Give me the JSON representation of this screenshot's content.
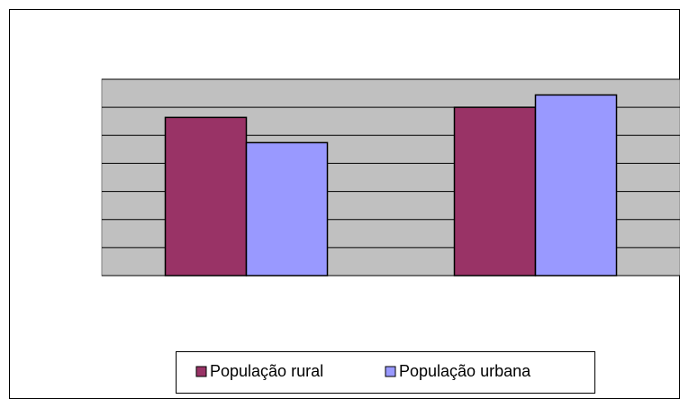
{
  "chart_data": {
    "type": "bar",
    "categories": [
      null,
      null
    ],
    "series": [
      {
        "name": "População rural",
        "color": "#993366",
        "values": [
          5.64,
          6.0
        ]
      },
      {
        "name": "População urbana",
        "color": "#9999ff",
        "values": [
          4.74,
          6.44
        ]
      }
    ],
    "ylim": [
      0,
      7
    ],
    "yticks": [
      0,
      1,
      2,
      3,
      4,
      5,
      6,
      7
    ],
    "grid": true,
    "legend": "bottom"
  }
}
